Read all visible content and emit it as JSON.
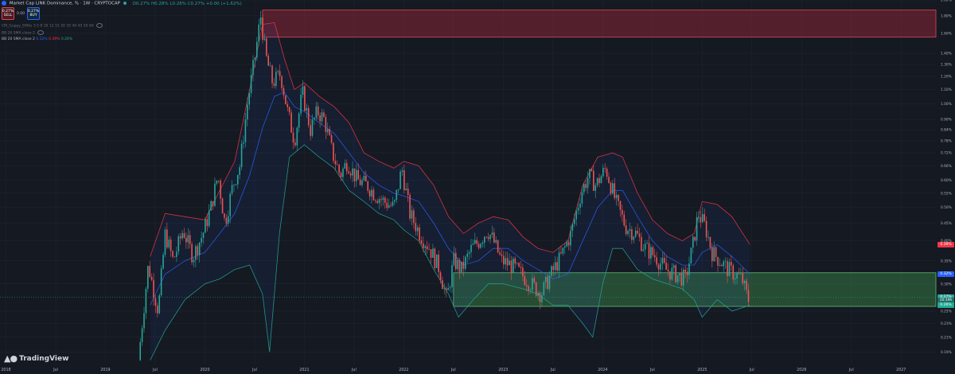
{
  "header": {
    "title": "Market Cap LINK Dominance, % · 1W · CRYPTOCAP",
    "ohlc": "O0.27% H0.28% L0.26% C0.27% +0.00 (+1.62%)"
  },
  "trade": {
    "sell_price": "0.27%",
    "sell_label": "SELL",
    "spread": "0.00",
    "buy_price": "0.27%",
    "buy_label": "BUY"
  },
  "indicators": [
    {
      "label": "CM_Guppy_EMAs 3 5 8 10 12 15 30 35 40 45 50 60"
    },
    {
      "label": "BB 20 SMA close 2"
    },
    {
      "label": "BB 20 SMA close 2",
      "v1": "0.32%",
      "v2": "0.39%",
      "v3": "0.26%"
    }
  ],
  "branding": {
    "logo_text": "TradingView"
  },
  "colors": {
    "background": "#151922",
    "up_candle": "#26a69a",
    "down_candle": "#ef5350",
    "bb_basis": "#2962ff",
    "bb_upper": "#f23645",
    "bb_lower": "#22ab94",
    "resistance_zone": "#a0283a",
    "support_zone": "#3c8c4b"
  },
  "price_tags": [
    {
      "value": "0.39%",
      "color": "#f23645",
      "y": 0.39
    },
    {
      "value": "0.32%",
      "color": "#2962ff",
      "y": 0.32
    },
    {
      "value": "0.27%",
      "color": "#26a69a",
      "y": 0.274
    },
    {
      "value": "10:19h",
      "color": "#1f6f66",
      "y": 0.268
    },
    {
      "value": "0.26%",
      "color": "#22ab94",
      "y": 0.26
    }
  ],
  "chart_data": {
    "type": "candlestick",
    "title": "Market Cap LINK Dominance, %",
    "interval": "1W",
    "scale": "log",
    "ylim": [
      0.175,
      2.0
    ],
    "y_ticks": [
      {
        "value": 2.0,
        "label": "2.00%"
      },
      {
        "value": 1.8,
        "label": "1.80%"
      },
      {
        "value": 1.6,
        "label": "1.60%"
      },
      {
        "value": 1.4,
        "label": "1.40%"
      },
      {
        "value": 1.3,
        "label": "1.30%"
      },
      {
        "value": 1.2,
        "label": "1.20%"
      },
      {
        "value": 1.1,
        "label": "1.10%"
      },
      {
        "value": 1.0,
        "label": "1.00%"
      },
      {
        "value": 0.9,
        "label": "0.90%"
      },
      {
        "value": 0.84,
        "label": "0.84%"
      },
      {
        "value": 0.78,
        "label": "0.78%"
      },
      {
        "value": 0.72,
        "label": "0.72%"
      },
      {
        "value": 0.66,
        "label": "0.66%"
      },
      {
        "value": 0.6,
        "label": "0.60%"
      },
      {
        "value": 0.55,
        "label": "0.55%"
      },
      {
        "value": 0.5,
        "label": "0.50%"
      },
      {
        "value": 0.45,
        "label": "0.45%"
      },
      {
        "value": 0.4,
        "label": "0.40%"
      },
      {
        "value": 0.35,
        "label": "0.35%"
      },
      {
        "value": 0.3,
        "label": "0.30%"
      },
      {
        "value": 0.25,
        "label": "0.25%"
      },
      {
        "value": 0.23,
        "label": "0.23%"
      },
      {
        "value": 0.21,
        "label": "0.21%"
      },
      {
        "value": 0.19,
        "label": "0.19%"
      }
    ],
    "x_ticks": [
      {
        "t": 2018.0,
        "label": "2018"
      },
      {
        "t": 2018.5,
        "label": "Jul"
      },
      {
        "t": 2019.0,
        "label": "2019"
      },
      {
        "t": 2019.5,
        "label": "Jul"
      },
      {
        "t": 2020.0,
        "label": "2020"
      },
      {
        "t": 2020.5,
        "label": "Jul"
      },
      {
        "t": 2021.0,
        "label": "2021"
      },
      {
        "t": 2021.5,
        "label": "Jul"
      },
      {
        "t": 2022.0,
        "label": "2022"
      },
      {
        "t": 2022.5,
        "label": "Jul"
      },
      {
        "t": 2023.0,
        "label": "2023"
      },
      {
        "t": 2023.5,
        "label": "Jul"
      },
      {
        "t": 2024.0,
        "label": "2024"
      },
      {
        "t": 2024.5,
        "label": "Jul"
      },
      {
        "t": 2025.0,
        "label": "2025"
      },
      {
        "t": 2025.5,
        "label": "Jul"
      },
      {
        "t": 2026.0,
        "label": "2026"
      },
      {
        "t": 2026.5,
        "label": "Jul"
      },
      {
        "t": 2027.0,
        "label": "2027"
      }
    ],
    "xlim": [
      2017.94,
      2027.35
    ],
    "zones": [
      {
        "name": "resistance",
        "t0": 2020.58,
        "t1": 2027.35,
        "y0": 1.56,
        "y1": 1.87
      },
      {
        "name": "support",
        "t0": 2022.5,
        "t1": 2027.35,
        "y0": 0.258,
        "y1": 0.323
      }
    ],
    "price_path": [
      [
        2019.35,
        0.18
      ],
      [
        2019.45,
        0.34
      ],
      [
        2019.55,
        0.25
      ],
      [
        2019.62,
        0.42
      ],
      [
        2019.7,
        0.35
      ],
      [
        2019.8,
        0.43
      ],
      [
        2019.9,
        0.36
      ],
      [
        2020.0,
        0.42
      ],
      [
        2020.08,
        0.5
      ],
      [
        2020.15,
        0.62
      ],
      [
        2020.22,
        0.45
      ],
      [
        2020.3,
        0.58
      ],
      [
        2020.37,
        0.66
      ],
      [
        2020.45,
        1.02
      ],
      [
        2020.52,
        1.35
      ],
      [
        2020.58,
        1.8
      ],
      [
        2020.63,
        1.38
      ],
      [
        2020.7,
        1.15
      ],
      [
        2020.78,
        1.22
      ],
      [
        2020.85,
        0.95
      ],
      [
        2020.92,
        0.78
      ],
      [
        2021.0,
        1.08
      ],
      [
        2021.08,
        0.84
      ],
      [
        2021.15,
        0.95
      ],
      [
        2021.22,
        0.9
      ],
      [
        2021.3,
        0.72
      ],
      [
        2021.38,
        0.62
      ],
      [
        2021.45,
        0.68
      ],
      [
        2021.55,
        0.6
      ],
      [
        2021.65,
        0.58
      ],
      [
        2021.72,
        0.55
      ],
      [
        2021.82,
        0.52
      ],
      [
        2021.92,
        0.5
      ],
      [
        2022.0,
        0.65
      ],
      [
        2022.08,
        0.48
      ],
      [
        2022.18,
        0.42
      ],
      [
        2022.28,
        0.38
      ],
      [
        2022.38,
        0.33
      ],
      [
        2022.45,
        0.27
      ],
      [
        2022.52,
        0.35
      ],
      [
        2022.6,
        0.33
      ],
      [
        2022.7,
        0.38
      ],
      [
        2022.78,
        0.4
      ],
      [
        2022.86,
        0.43
      ],
      [
        2022.92,
        0.4
      ],
      [
        2023.0,
        0.35
      ],
      [
        2023.1,
        0.34
      ],
      [
        2023.2,
        0.32
      ],
      [
        2023.3,
        0.3
      ],
      [
        2023.4,
        0.28
      ],
      [
        2023.5,
        0.32
      ],
      [
        2023.6,
        0.36
      ],
      [
        2023.7,
        0.42
      ],
      [
        2023.8,
        0.55
      ],
      [
        2023.88,
        0.62
      ],
      [
        2023.95,
        0.58
      ],
      [
        2024.05,
        0.65
      ],
      [
        2024.15,
        0.52
      ],
      [
        2024.25,
        0.44
      ],
      [
        2024.35,
        0.42
      ],
      [
        2024.45,
        0.38
      ],
      [
        2024.55,
        0.36
      ],
      [
        2024.65,
        0.33
      ],
      [
        2024.75,
        0.32
      ],
      [
        2024.85,
        0.31
      ],
      [
        2024.92,
        0.38
      ],
      [
        2024.98,
        0.48
      ],
      [
        2025.05,
        0.44
      ],
      [
        2025.12,
        0.37
      ],
      [
        2025.2,
        0.35
      ],
      [
        2025.28,
        0.33
      ],
      [
        2025.35,
        0.32
      ],
      [
        2025.42,
        0.31
      ],
      [
        2025.48,
        0.27
      ]
    ],
    "bb_upper": [
      [
        2019.45,
        0.36
      ],
      [
        2019.6,
        0.48
      ],
      [
        2019.8,
        0.47
      ],
      [
        2020.0,
        0.46
      ],
      [
        2020.15,
        0.56
      ],
      [
        2020.3,
        0.68
      ],
      [
        2020.45,
        1.1
      ],
      [
        2020.58,
        1.7
      ],
      [
        2020.7,
        1.72
      ],
      [
        2020.8,
        1.35
      ],
      [
        2020.9,
        1.1
      ],
      [
        2021.0,
        1.15
      ],
      [
        2021.15,
        1.05
      ],
      [
        2021.3,
        0.98
      ],
      [
        2021.45,
        0.88
      ],
      [
        2021.6,
        0.72
      ],
      [
        2021.75,
        0.68
      ],
      [
        2021.9,
        0.65
      ],
      [
        2022.0,
        0.68
      ],
      [
        2022.15,
        0.66
      ],
      [
        2022.3,
        0.58
      ],
      [
        2022.45,
        0.47
      ],
      [
        2022.6,
        0.42
      ],
      [
        2022.75,
        0.45
      ],
      [
        2022.9,
        0.47
      ],
      [
        2023.05,
        0.46
      ],
      [
        2023.2,
        0.41
      ],
      [
        2023.35,
        0.38
      ],
      [
        2023.5,
        0.37
      ],
      [
        2023.65,
        0.4
      ],
      [
        2023.8,
        0.58
      ],
      [
        2023.95,
        0.7
      ],
      [
        2024.1,
        0.72
      ],
      [
        2024.2,
        0.7
      ],
      [
        2024.35,
        0.55
      ],
      [
        2024.5,
        0.46
      ],
      [
        2024.65,
        0.42
      ],
      [
        2024.8,
        0.4
      ],
      [
        2024.92,
        0.42
      ],
      [
        2025.0,
        0.52
      ],
      [
        2025.15,
        0.51
      ],
      [
        2025.3,
        0.47
      ],
      [
        2025.48,
        0.39
      ]
    ],
    "bb_basis": [
      [
        2019.45,
        0.26
      ],
      [
        2019.6,
        0.32
      ],
      [
        2019.8,
        0.35
      ],
      [
        2020.0,
        0.37
      ],
      [
        2020.15,
        0.42
      ],
      [
        2020.3,
        0.48
      ],
      [
        2020.45,
        0.62
      ],
      [
        2020.58,
        0.85
      ],
      [
        2020.7,
        1.05
      ],
      [
        2020.8,
        1.08
      ],
      [
        2020.9,
        0.98
      ],
      [
        2021.0,
        0.95
      ],
      [
        2021.15,
        0.88
      ],
      [
        2021.3,
        0.82
      ],
      [
        2021.45,
        0.72
      ],
      [
        2021.6,
        0.63
      ],
      [
        2021.75,
        0.58
      ],
      [
        2021.9,
        0.55
      ],
      [
        2022.0,
        0.54
      ],
      [
        2022.15,
        0.52
      ],
      [
        2022.3,
        0.45
      ],
      [
        2022.45,
        0.38
      ],
      [
        2022.6,
        0.34
      ],
      [
        2022.75,
        0.35
      ],
      [
        2022.9,
        0.38
      ],
      [
        2023.05,
        0.38
      ],
      [
        2023.2,
        0.35
      ],
      [
        2023.35,
        0.33
      ],
      [
        2023.5,
        0.31
      ],
      [
        2023.65,
        0.32
      ],
      [
        2023.8,
        0.4
      ],
      [
        2023.95,
        0.5
      ],
      [
        2024.1,
        0.56
      ],
      [
        2024.2,
        0.56
      ],
      [
        2024.35,
        0.47
      ],
      [
        2024.5,
        0.4
      ],
      [
        2024.65,
        0.36
      ],
      [
        2024.8,
        0.34
      ],
      [
        2024.92,
        0.34
      ],
      [
        2025.0,
        0.37
      ],
      [
        2025.15,
        0.39
      ],
      [
        2025.3,
        0.36
      ],
      [
        2025.48,
        0.32
      ]
    ],
    "bb_lower": [
      [
        2019.45,
        0.18
      ],
      [
        2019.6,
        0.22
      ],
      [
        2019.8,
        0.27
      ],
      [
        2020.0,
        0.3
      ],
      [
        2020.15,
        0.31
      ],
      [
        2020.3,
        0.33
      ],
      [
        2020.45,
        0.34
      ],
      [
        2020.58,
        0.28
      ],
      [
        2020.65,
        0.19
      ],
      [
        2020.75,
        0.42
      ],
      [
        2020.85,
        0.7
      ],
      [
        2021.0,
        0.76
      ],
      [
        2021.15,
        0.7
      ],
      [
        2021.3,
        0.65
      ],
      [
        2021.45,
        0.56
      ],
      [
        2021.6,
        0.52
      ],
      [
        2021.75,
        0.48
      ],
      [
        2021.9,
        0.46
      ],
      [
        2022.0,
        0.43
      ],
      [
        2022.15,
        0.4
      ],
      [
        2022.3,
        0.33
      ],
      [
        2022.45,
        0.28
      ],
      [
        2022.55,
        0.24
      ],
      [
        2022.7,
        0.27
      ],
      [
        2022.85,
        0.3
      ],
      [
        2023.0,
        0.3
      ],
      [
        2023.2,
        0.29
      ],
      [
        2023.35,
        0.28
      ],
      [
        2023.5,
        0.26
      ],
      [
        2023.65,
        0.26
      ],
      [
        2023.8,
        0.23
      ],
      [
        2023.9,
        0.21
      ],
      [
        2024.0,
        0.3
      ],
      [
        2024.1,
        0.38
      ],
      [
        2024.2,
        0.38
      ],
      [
        2024.35,
        0.33
      ],
      [
        2024.5,
        0.31
      ],
      [
        2024.65,
        0.3
      ],
      [
        2024.8,
        0.29
      ],
      [
        2024.92,
        0.27
      ],
      [
        2025.0,
        0.24
      ],
      [
        2025.15,
        0.27
      ],
      [
        2025.3,
        0.25
      ],
      [
        2025.48,
        0.26
      ]
    ]
  }
}
